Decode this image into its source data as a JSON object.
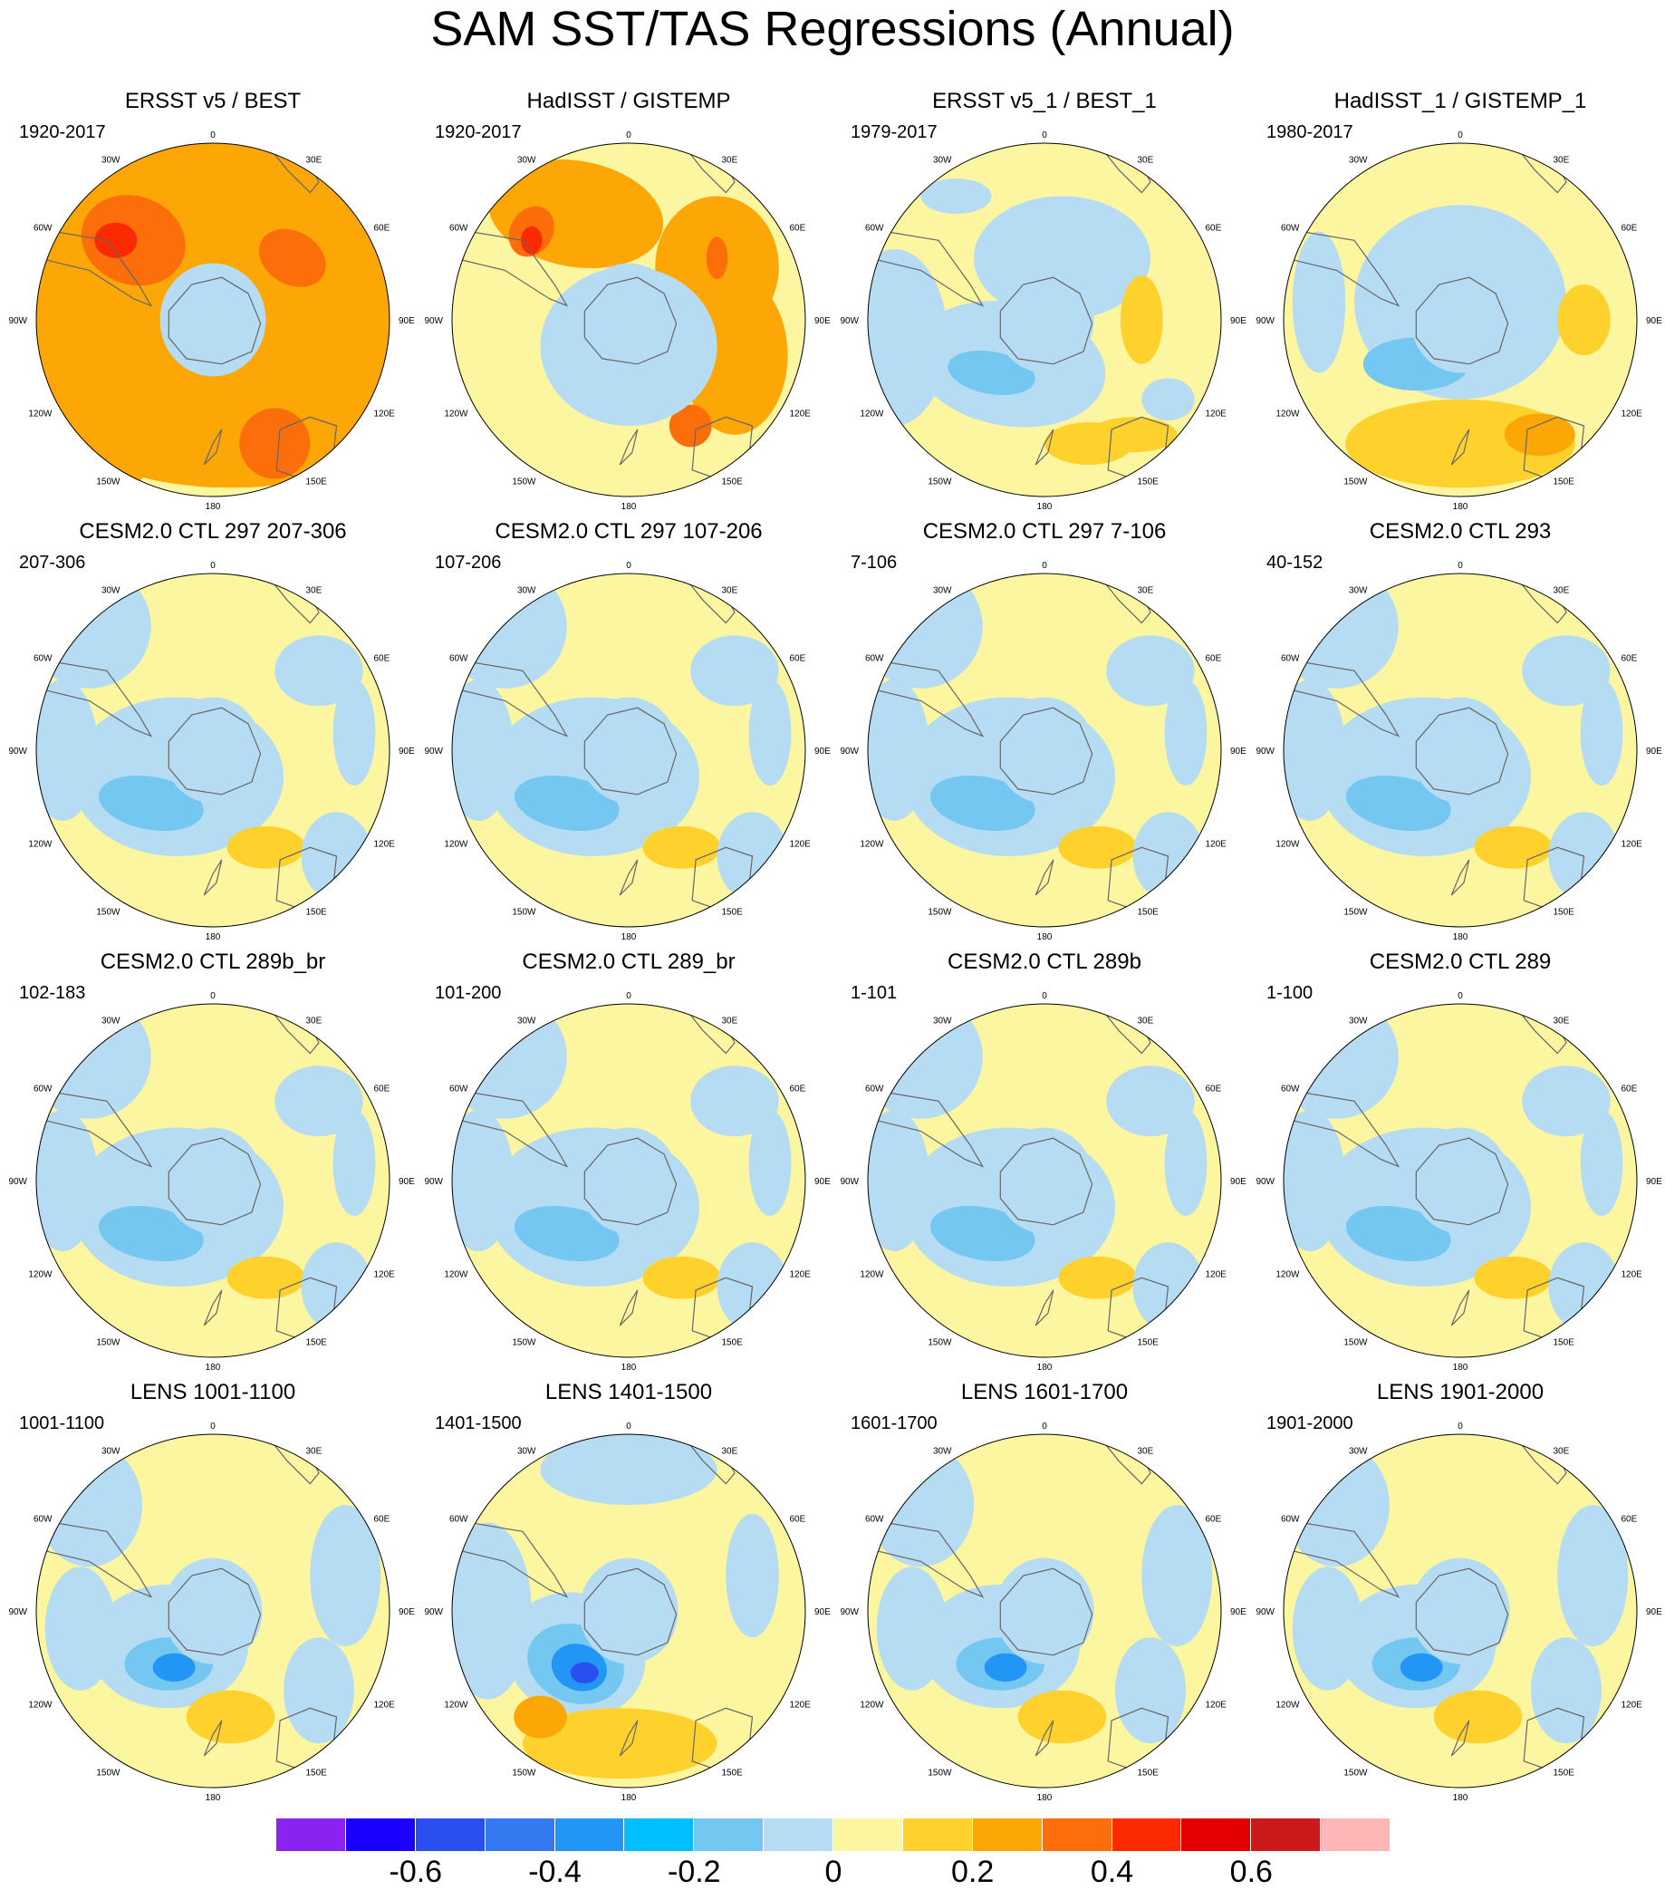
{
  "title": "SAM SST/TAS Regressions (Annual)",
  "lon_labels": [
    "0",
    "30E",
    "60E",
    "90E",
    "120E",
    "150E",
    "180",
    "150W",
    "120W",
    "90W",
    "60W",
    "30W"
  ],
  "panels": [
    {
      "title": "ERSST v5 / BEST",
      "period": "1920-2017",
      "style": "warm"
    },
    {
      "title": "HadISST / GISTEMP",
      "period": "1920-2017",
      "style": "warm2"
    },
    {
      "title": "ERSST v5_1 / BEST_1",
      "period": "1979-2017",
      "style": "mixed"
    },
    {
      "title": "HadISST_1 / GISTEMP_1",
      "period": "1980-2017",
      "style": "mixed2"
    },
    {
      "title": "CESM2.0 CTL 297 207-306",
      "period": "207-306",
      "style": "model"
    },
    {
      "title": "CESM2.0 CTL 297 107-206",
      "period": "107-206",
      "style": "model"
    },
    {
      "title": "CESM2.0 CTL 297 7-106",
      "period": "7-106",
      "style": "model"
    },
    {
      "title": "CESM2.0 CTL 293",
      "period": "40-152",
      "style": "model"
    },
    {
      "title": "CESM2.0 CTL 289b_br",
      "period": "102-183",
      "style": "model"
    },
    {
      "title": "CESM2.0 CTL 289_br",
      "period": "101-200",
      "style": "model"
    },
    {
      "title": "CESM2.0 CTL 289b",
      "period": "1-101",
      "style": "model"
    },
    {
      "title": "CESM2.0 CTL 289",
      "period": "1-100",
      "style": "model"
    },
    {
      "title": "LENS 1001-1100",
      "period": "1001-1100",
      "style": "lens"
    },
    {
      "title": "LENS 1401-1500",
      "period": "1401-1500",
      "style": "lens2"
    },
    {
      "title": "LENS 1601-1700",
      "period": "1601-1700",
      "style": "lens"
    },
    {
      "title": "LENS 1901-2000",
      "period": "1901-2000",
      "style": "lens"
    }
  ],
  "colorbar": {
    "colors": [
      "#8a22f0",
      "#1a00ff",
      "#2a4ff0",
      "#3479f0",
      "#2196f5",
      "#00bfff",
      "#74c7f0",
      "#b5dcf2",
      "#fdf6a0",
      "#fed12c",
      "#fda707",
      "#fc6e0a",
      "#fd2a00",
      "#e40000",
      "#cc1a1a",
      "#feb6b6"
    ],
    "tick_labels": [
      "-0.6",
      "-0.4",
      "-0.2",
      "0",
      "0.2",
      "0.4",
      "0.6"
    ],
    "tick_values": [
      -0.6,
      -0.4,
      -0.2,
      0,
      0.2,
      0.4,
      0.6
    ],
    "min": -0.7,
    "max": 0.7,
    "ticks_per_box_step": 0.1
  }
}
